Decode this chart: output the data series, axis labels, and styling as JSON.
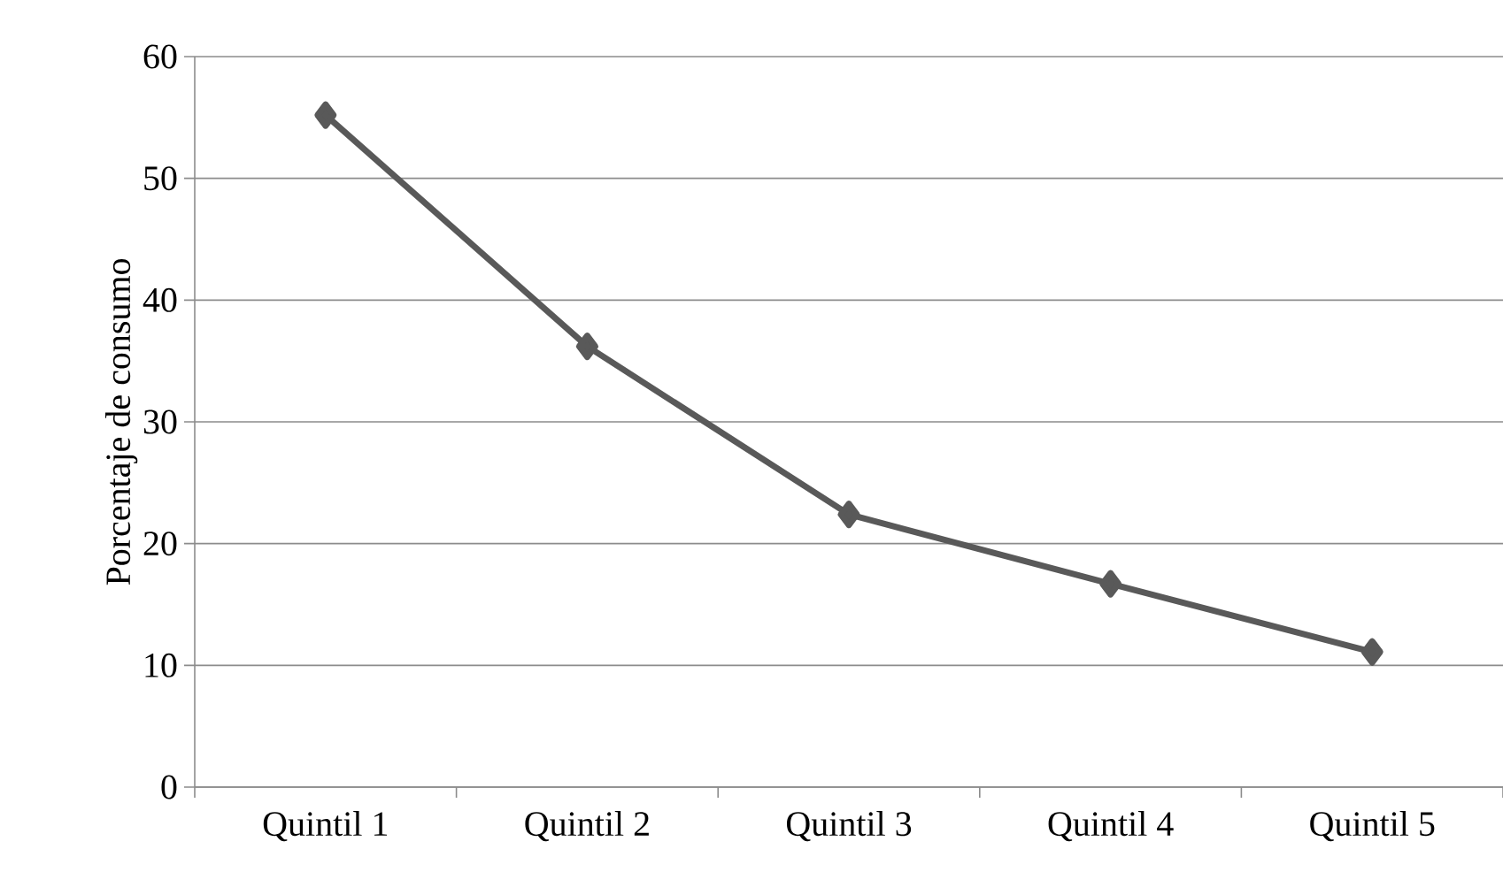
{
  "chart_data": {
    "type": "line",
    "ylabel": "Porcentaje de consumo",
    "categories": [
      "Quintil 1",
      "Quintil 2",
      "Quintil 3",
      "Quintil 4",
      "Quintil 5"
    ],
    "series": [
      {
        "color": "#595959",
        "values": [
          55.2,
          36.2,
          22.4,
          16.7,
          11.1
        ]
      }
    ],
    "ylim": [
      0,
      60
    ],
    "yticks": [
      0,
      10,
      20,
      30,
      40,
      50,
      60
    ],
    "grid": "y",
    "marker": "diamond",
    "line_style": "solid"
  }
}
